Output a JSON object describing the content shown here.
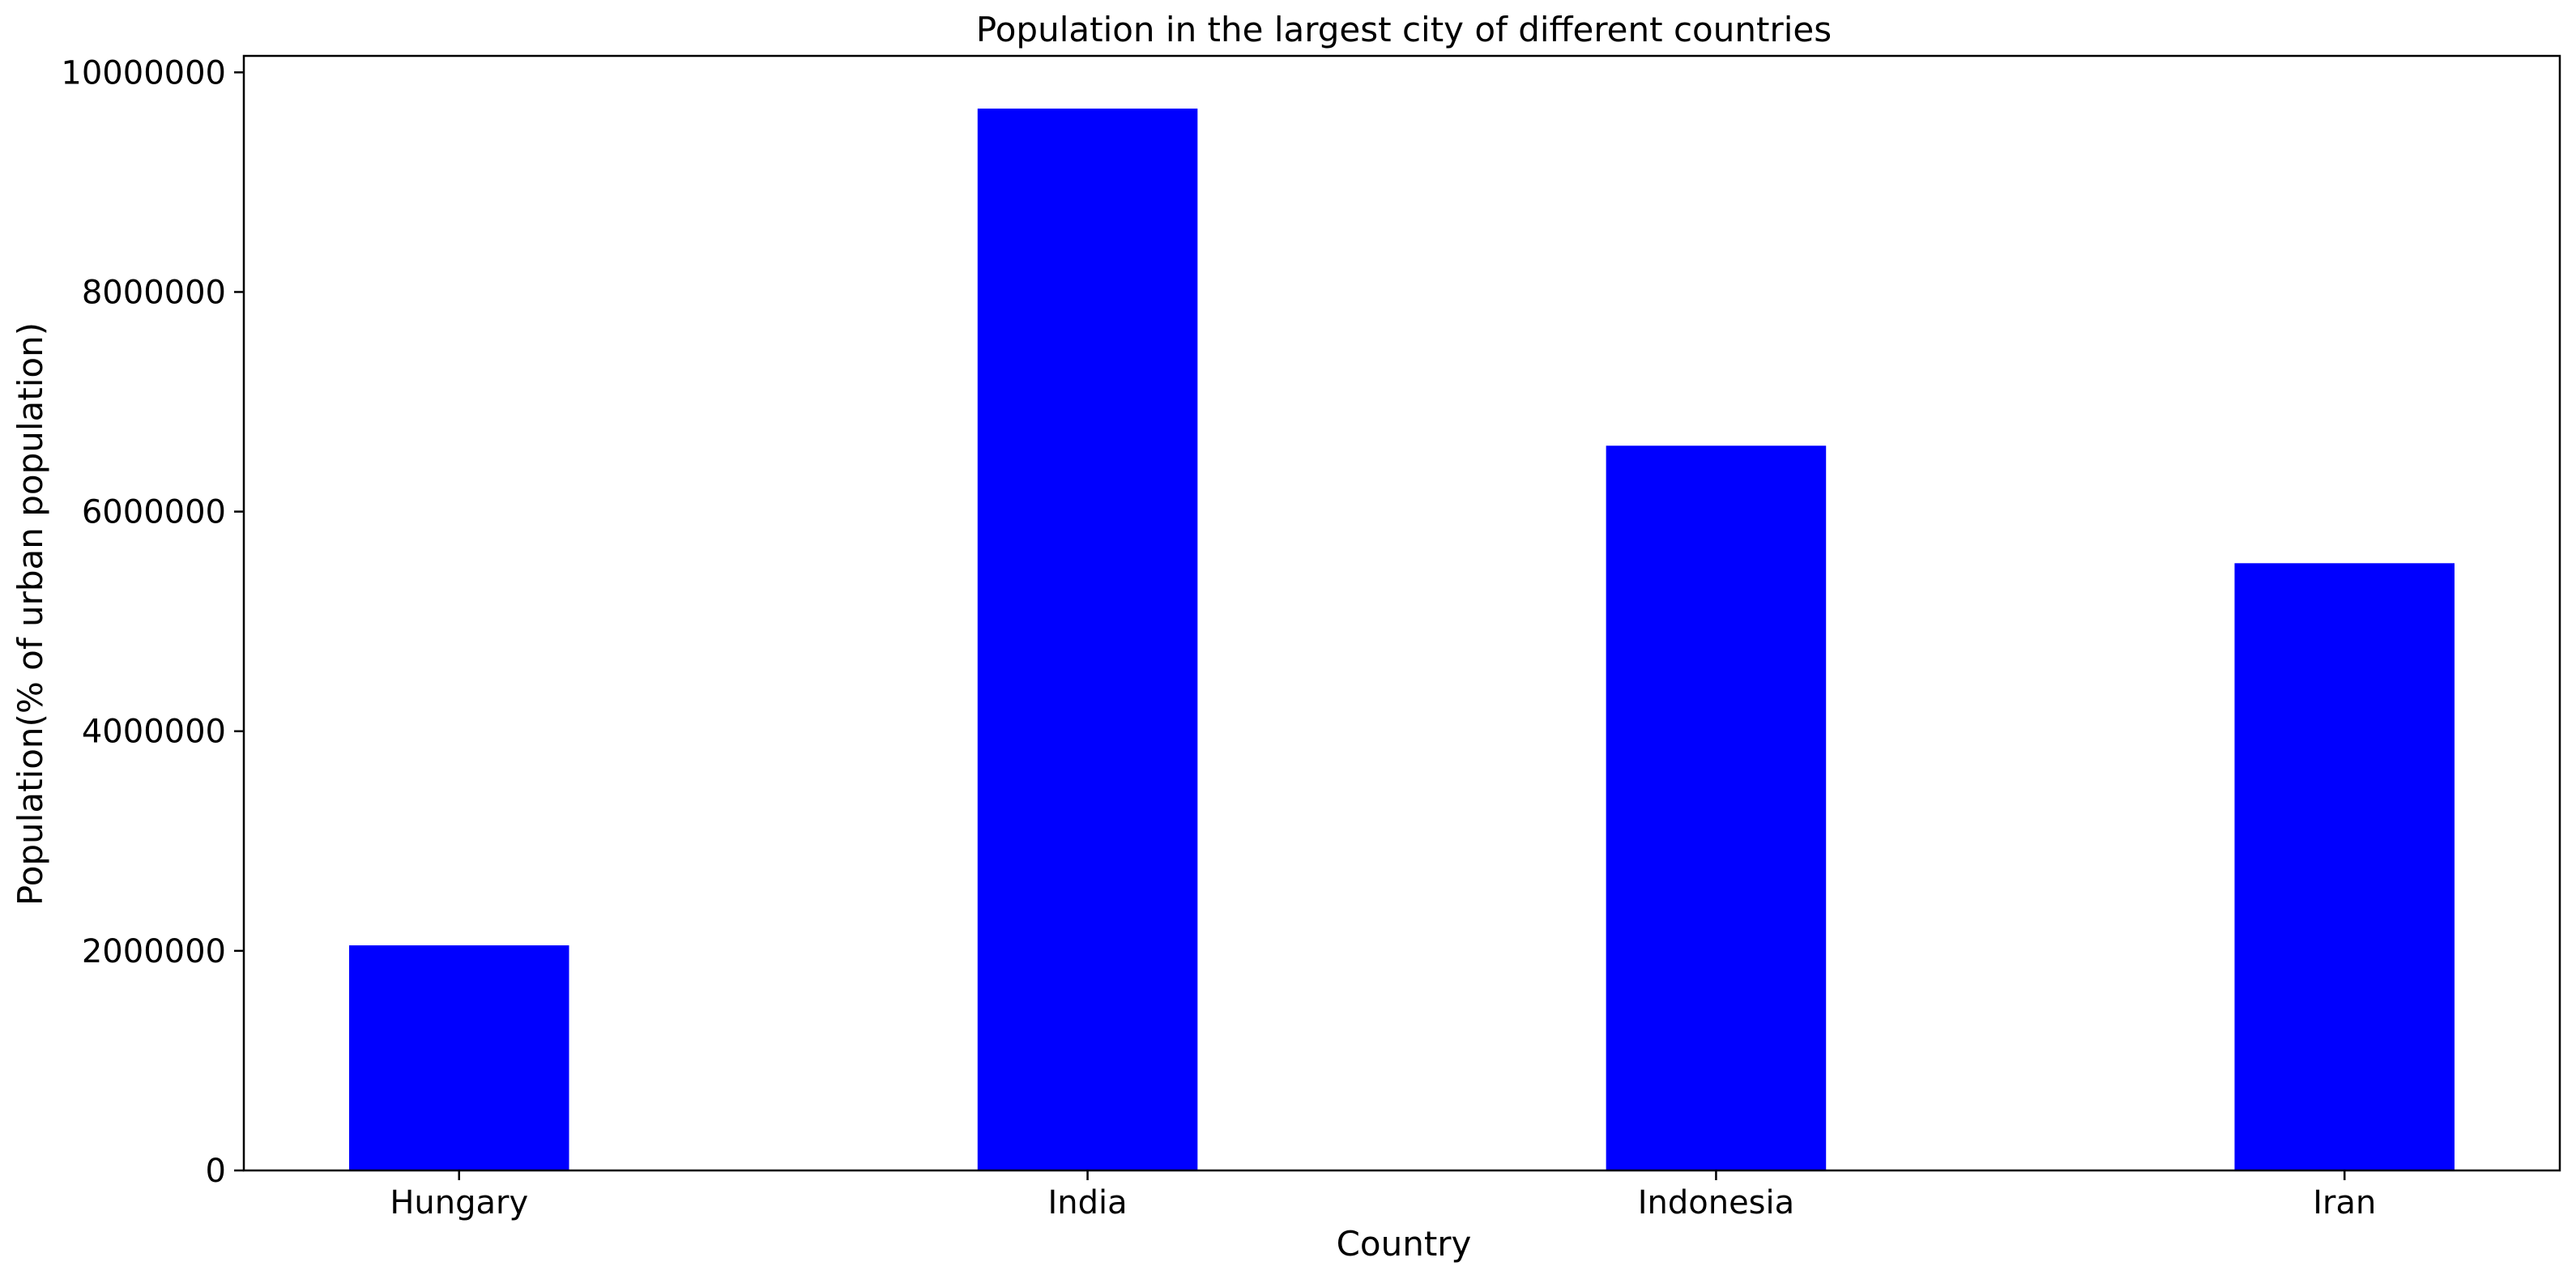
{
  "chart_data": {
    "type": "bar",
    "title": "Population in the largest city of different countries",
    "xlabel": "Country",
    "ylabel": "Population(% of urban population)",
    "categories": [
      "Hungary",
      "India",
      "Indonesia",
      "Iran"
    ],
    "values": [
      2050000,
      9670000,
      6600000,
      5530000
    ],
    "ylim": [
      0,
      10150000
    ],
    "yticks": [
      0,
      2000000,
      4000000,
      6000000,
      8000000,
      10000000
    ],
    "ytick_labels": [
      "0",
      "2000000",
      "4000000",
      "6000000",
      "8000000",
      "10000000"
    ],
    "grid": false,
    "colors": {
      "bar": "#0000ff",
      "axes": "#000000",
      "background": "#ffffff"
    }
  }
}
